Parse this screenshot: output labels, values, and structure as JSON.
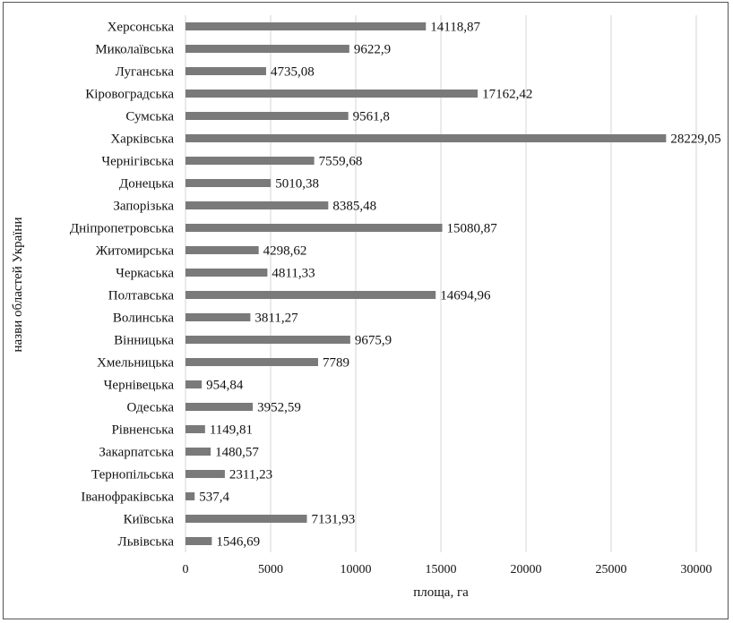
{
  "chart_data": {
    "type": "bar",
    "orientation": "horizontal",
    "categories": [
      "Херсонська",
      "Миколаївська",
      "Луганська",
      "Кіровоградська",
      "Сумська",
      "Харківська",
      "Чернігівська",
      "Донецька",
      "Запорізька",
      "Дніпропетровська",
      "Житомирська",
      "Черкаська",
      "Полтавська",
      "Волинська",
      "Вінницька",
      "Хмельницька",
      "Чернівецька",
      "Одеська",
      "Рівненська",
      "Закарпатська",
      "Тернопільська",
      "Іванофраківська",
      "Київська",
      "Львівська"
    ],
    "values": [
      14118.87,
      9622.9,
      4735.08,
      17162.42,
      9561.8,
      28229.05,
      7559.68,
      5010.38,
      8385.48,
      15080.87,
      4298.62,
      4811.33,
      14694.96,
      3811.27,
      9675.9,
      7789,
      954.84,
      3952.59,
      1149.81,
      1480.57,
      2311.23,
      537.4,
      7131.93,
      1546.69
    ],
    "value_labels": [
      "14118,87",
      "9622,9",
      "4735,08",
      "17162,42",
      "9561,8",
      "28229,05",
      "7559,68",
      "5010,38",
      "8385,48",
      "15080,87",
      "4298,62",
      "4811,33",
      "14694,96",
      "3811,27",
      "9675,9",
      "7789",
      "954,84",
      "3952,59",
      "1149,81",
      "1480,57",
      "2311,23",
      "537,4",
      "7131,93",
      "1546,69"
    ],
    "xlabel": "площа, га",
    "ylabel": "назви областей України",
    "xlim": [
      0,
      30000
    ],
    "xticks": [
      0,
      5000,
      10000,
      15000,
      20000,
      25000,
      30000
    ],
    "xtick_labels": [
      "0",
      "5000",
      "10000",
      "15000",
      "20000",
      "25000",
      "30000"
    ],
    "grid": "vertical",
    "bar_color": "#7a7a7a"
  }
}
